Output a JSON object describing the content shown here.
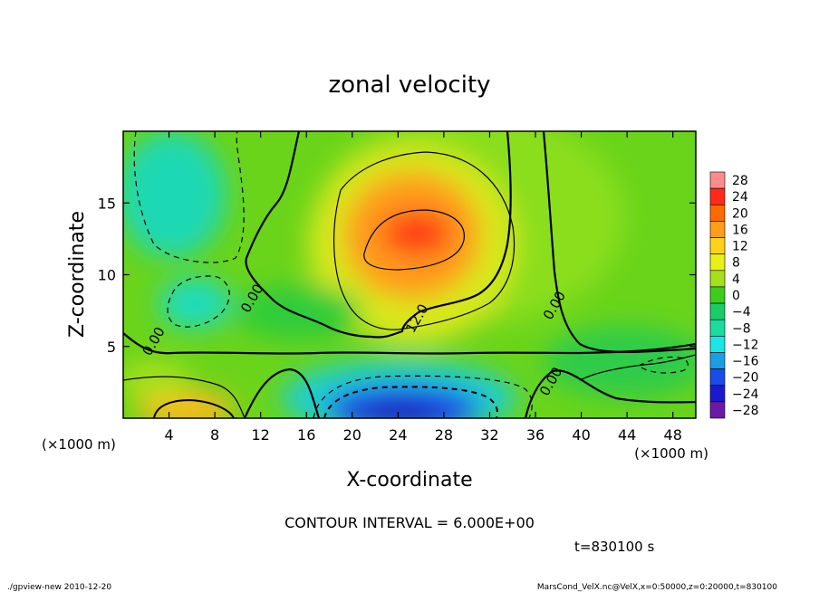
{
  "chart_data": {
    "type": "heatmap",
    "title": "zonal velocity",
    "xlabel": "X-coordinate",
    "ylabel": "Z-coordinate",
    "x_unit_label": "(×1000 m)",
    "y_unit_label": "(×1000 m)",
    "xlim": [
      0,
      50
    ],
    "ylim": [
      0,
      20
    ],
    "x_ticks": [
      4,
      8,
      12,
      16,
      20,
      24,
      28,
      32,
      36,
      40,
      44,
      48
    ],
    "y_ticks": [
      5,
      10,
      15
    ],
    "colorbar": {
      "levels": [
        28,
        24,
        20,
        16,
        12,
        8,
        4,
        0,
        -4,
        -8,
        -12,
        -16,
        -20,
        -24,
        -28
      ],
      "colors": [
        "#ff8c8c",
        "#ff2a1a",
        "#ff6a00",
        "#ff9e1a",
        "#ffd21a",
        "#e8f01a",
        "#a6e01a",
        "#3ccc1a",
        "#1acc66",
        "#1adc9e",
        "#1ae6e6",
        "#1a9ee6",
        "#1a4ce6",
        "#1a1acc",
        "#6a1aa6"
      ]
    },
    "contour_labels": [
      {
        "text": "0.00",
        "x": 3.0,
        "z": 5.2
      },
      {
        "text": "0.00",
        "x": 11.6,
        "z": 8.2
      },
      {
        "text": "12.0",
        "x": 26.0,
        "z": 6.8
      },
      {
        "text": "0.00",
        "x": 38.0,
        "z": 7.7
      },
      {
        "text": "0.00",
        "x": 37.7,
        "z": 2.4
      }
    ],
    "contour_interval_text": "CONTOUR INTERVAL = 6.000E+00",
    "time_text": "t=830100 s"
  },
  "footer": {
    "left": "./gpview-new  2010-12-20",
    "right": "MarsCond_VelX.nc@VelX,x=0:50000,z=0:20000,t=830100"
  }
}
